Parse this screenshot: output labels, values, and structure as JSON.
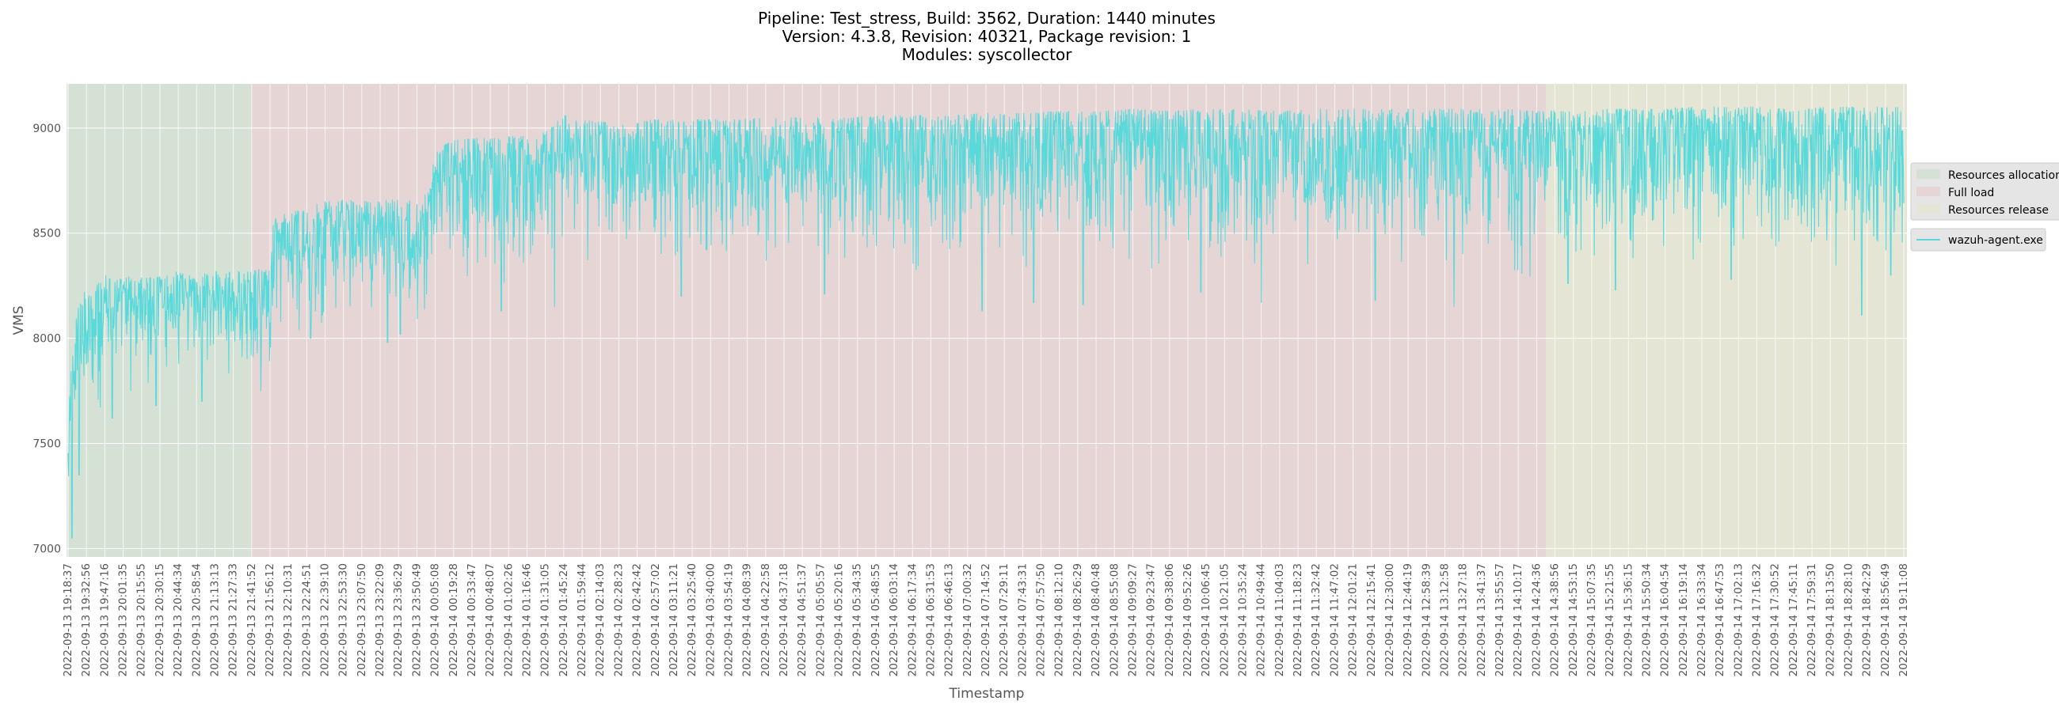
{
  "chart_data": {
    "type": "line",
    "title_lines": [
      "Pipeline: Test_stress, Build: 3562, Duration: 1440 minutes",
      "Version: 4.3.8, Revision: 40321, Package revision: 1",
      "Modules: syscollector"
    ],
    "xlabel": "Timestamp",
    "ylabel": "VMS",
    "ylim": [
      6960,
      9210
    ],
    "yticks": [
      7000,
      7500,
      8000,
      8500,
      9000
    ],
    "grid": true,
    "x_ticks": [
      "2022-09-13 19:18:37",
      "2022-09-13 19:32:56",
      "2022-09-13 19:47:16",
      "2022-09-13 20:01:35",
      "2022-09-13 20:15:55",
      "2022-09-13 20:30:15",
      "2022-09-13 20:44:34",
      "2022-09-13 20:58:54",
      "2022-09-13 21:13:13",
      "2022-09-13 21:27:33",
      "2022-09-13 21:41:52",
      "2022-09-13 21:56:12",
      "2022-09-13 22:10:31",
      "2022-09-13 22:24:51",
      "2022-09-13 22:39:10",
      "2022-09-13 22:53:30",
      "2022-09-13 23:07:50",
      "2022-09-13 23:22:09",
      "2022-09-13 23:36:29",
      "2022-09-13 23:50:49",
      "2022-09-14 00:05:08",
      "2022-09-14 00:19:28",
      "2022-09-14 00:33:47",
      "2022-09-14 00:48:07",
      "2022-09-14 01:02:26",
      "2022-09-14 01:16:46",
      "2022-09-14 01:31:05",
      "2022-09-14 01:45:24",
      "2022-09-14 01:59:44",
      "2022-09-14 02:14:03",
      "2022-09-14 02:28:23",
      "2022-09-14 02:42:42",
      "2022-09-14 02:57:02",
      "2022-09-14 03:11:21",
      "2022-09-14 03:25:40",
      "2022-09-14 03:40:00",
      "2022-09-14 03:54:19",
      "2022-09-14 04:08:39",
      "2022-09-14 04:22:58",
      "2022-09-14 04:37:18",
      "2022-09-14 04:51:37",
      "2022-09-14 05:05:57",
      "2022-09-14 05:20:16",
      "2022-09-14 05:34:35",
      "2022-09-14 05:48:55",
      "2022-09-14 06:03:14",
      "2022-09-14 06:17:34",
      "2022-09-14 06:31:53",
      "2022-09-14 06:46:13",
      "2022-09-14 07:00:32",
      "2022-09-14 07:14:52",
      "2022-09-14 07:29:11",
      "2022-09-14 07:43:31",
      "2022-09-14 07:57:50",
      "2022-09-14 08:12:10",
      "2022-09-14 08:26:29",
      "2022-09-14 08:40:48",
      "2022-09-14 08:55:08",
      "2022-09-14 09:09:27",
      "2022-09-14 09:23:47",
      "2022-09-14 09:38:06",
      "2022-09-14 09:52:26",
      "2022-09-14 10:06:45",
      "2022-09-14 10:21:05",
      "2022-09-14 10:35:24",
      "2022-09-14 10:49:44",
      "2022-09-14 11:04:03",
      "2022-09-14 11:18:23",
      "2022-09-14 11:32:42",
      "2022-09-14 11:47:02",
      "2022-09-14 12:01:21",
      "2022-09-14 12:15:41",
      "2022-09-14 12:30:00",
      "2022-09-14 12:44:19",
      "2022-09-14 12:58:39",
      "2022-09-14 13:12:58",
      "2022-09-14 13:27:18",
      "2022-09-14 13:41:37",
      "2022-09-14 13:55:57",
      "2022-09-14 14:10:17",
      "2022-09-14 14:24:36",
      "2022-09-14 14:38:56",
      "2022-09-14 14:53:15",
      "2022-09-14 15:07:35",
      "2022-09-14 15:21:55",
      "2022-09-14 15:36:15",
      "2022-09-14 15:50:34",
      "2022-09-14 16:04:54",
      "2022-09-14 16:19:14",
      "2022-09-14 16:33:34",
      "2022-09-14 16:47:53",
      "2022-09-14 17:02:13",
      "2022-09-14 17:16:32",
      "2022-09-14 17:30:52",
      "2022-09-14 17:45:11",
      "2022-09-14 17:59:31",
      "2022-09-14 18:13:50",
      "2022-09-14 18:28:10",
      "2022-09-14 18:42:29",
      "2022-09-14 18:56:49",
      "2022-09-14 19:11:08"
    ],
    "phases": [
      {
        "name": "Resources allocation",
        "start_tick": 0,
        "end_tick": 10,
        "color": "#d5e1d5"
      },
      {
        "name": "Full load",
        "start_tick": 10,
        "end_tick": 80.5,
        "color": "#e5d5d5"
      },
      {
        "name": "Resources release",
        "start_tick": 80.5,
        "end_tick": 101,
        "color": "#e5e5d5"
      }
    ],
    "series": [
      {
        "name": "wazuh-agent.exe",
        "color": "#5ad9db",
        "x_tick_index": [
          0,
          0.3,
          0.7,
          1,
          1.5,
          2,
          2.5,
          3,
          3.5,
          4,
          4.5,
          5,
          5.5,
          6,
          6.5,
          7,
          7.5,
          8,
          8.5,
          9,
          9.5,
          10,
          10.5,
          11,
          11.2,
          12,
          13,
          14,
          15,
          16,
          17,
          18,
          19,
          19.7,
          20,
          21,
          22,
          23,
          24,
          25,
          26,
          27,
          28,
          29,
          30,
          32,
          34,
          36,
          38,
          40,
          42,
          44,
          46,
          48,
          50,
          52,
          54,
          56,
          58,
          60,
          62,
          64,
          66,
          68,
          70,
          72,
          74,
          76,
          78,
          80,
          82,
          84,
          86,
          88,
          90,
          92,
          94,
          96,
          98,
          100,
          101
        ],
        "upper": [
          7600,
          8050,
          8200,
          8240,
          8270,
          8300,
          8290,
          8280,
          8300,
          8290,
          8290,
          8300,
          8300,
          8320,
          8300,
          8290,
          8310,
          8320,
          8300,
          8330,
          8310,
          8320,
          8330,
          8320,
          8580,
          8600,
          8620,
          8650,
          8660,
          8650,
          8660,
          8660,
          8650,
          8700,
          8900,
          8940,
          8950,
          8960,
          8960,
          8960,
          8980,
          9060,
          9040,
          9030,
          9020,
          9040,
          9040,
          9040,
          9050,
          9050,
          9050,
          9060,
          9060,
          9060,
          9070,
          9070,
          9080,
          9080,
          9090,
          9080,
          9090,
          9090,
          9080,
          9090,
          9090,
          9090,
          9090,
          9090,
          9090,
          9080,
          9090,
          9090,
          9090,
          9100,
          9100,
          9100,
          9090,
          9100,
          9100,
          9100,
          9000
        ],
        "lower": [
          6980,
          7450,
          7550,
          7600,
          7620,
          7650,
          7680,
          7700,
          7720,
          7760,
          7750,
          7770,
          7800,
          7800,
          7820,
          7800,
          7810,
          7820,
          7800,
          7820,
          7810,
          7780,
          7760,
          7800,
          7980,
          8000,
          8000,
          8050,
          8080,
          8100,
          8100,
          8080,
          8000,
          8150,
          8250,
          8300,
          8280,
          8250,
          8150,
          8250,
          8300,
          8350,
          8350,
          8350,
          8340,
          8350,
          8380,
          8300,
          8350,
          8380,
          8350,
          8380,
          8300,
          8350,
          8300,
          8250,
          8300,
          8350,
          8300,
          8300,
          8320,
          8330,
          8300,
          8330,
          8300,
          8250,
          8350,
          8320,
          8300,
          8250,
          8350,
          8300,
          8300,
          8340,
          8320,
          8350,
          8300,
          8300,
          8320,
          8300,
          8500
        ],
        "dips": [
          [
            0.2,
            7050
          ],
          [
            0.6,
            7350
          ],
          [
            2.4,
            7620
          ],
          [
            4.8,
            7680
          ],
          [
            7.3,
            7700
          ],
          [
            10.5,
            7750
          ],
          [
            13.2,
            8000
          ],
          [
            17.4,
            7980
          ],
          [
            18.1,
            8020
          ],
          [
            23.6,
            8130
          ],
          [
            26.5,
            8150
          ],
          [
            33.4,
            8200
          ],
          [
            41.2,
            8210
          ],
          [
            49.8,
            8130
          ],
          [
            52.6,
            8170
          ],
          [
            55.3,
            8160
          ],
          [
            61.7,
            8220
          ],
          [
            65.0,
            8170
          ],
          [
            71.2,
            8180
          ],
          [
            75.5,
            8150
          ],
          [
            81.7,
            8260
          ],
          [
            84.3,
            8230
          ],
          [
            90.6,
            8280
          ],
          [
            97.7,
            8110
          ],
          [
            99.3,
            8300
          ]
        ]
      }
    ],
    "legend": {
      "placement": "right",
      "phase_entries": [
        "Resources allocation",
        "Full load",
        "Resources release"
      ],
      "series_entries": [
        "wazuh-agent.exe"
      ]
    }
  }
}
